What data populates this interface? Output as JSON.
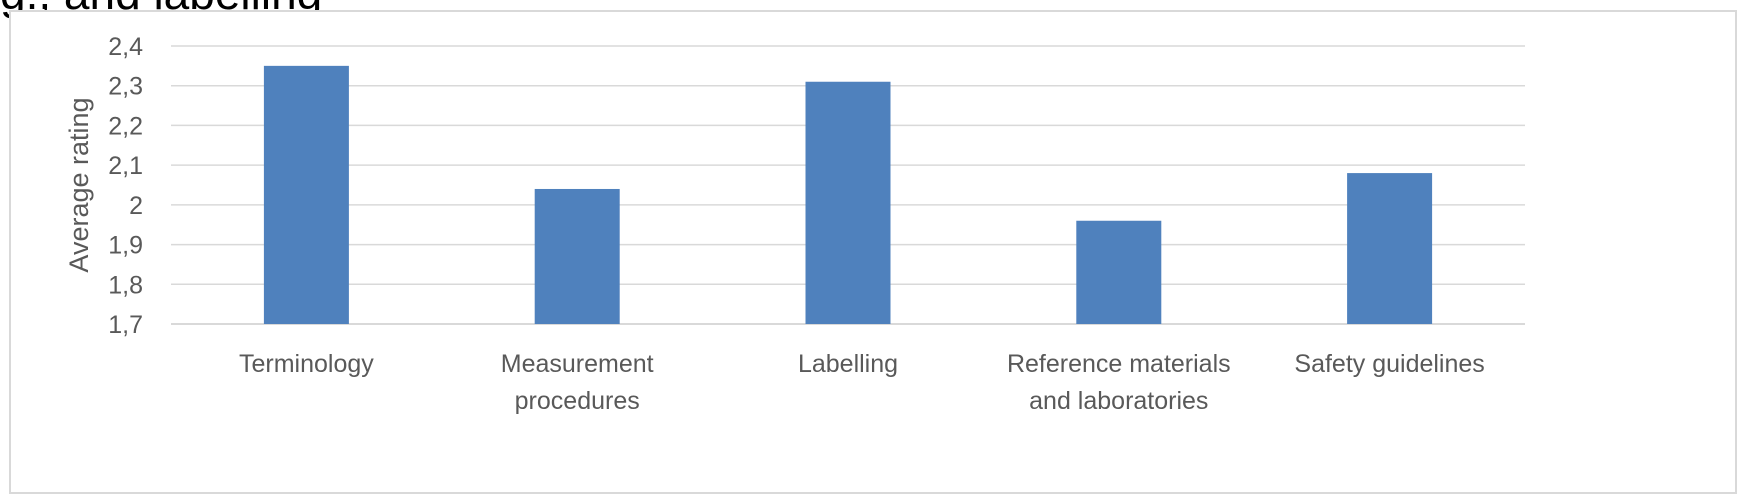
{
  "caption_fragment": "g., and labelling",
  "chart_data": {
    "type": "bar",
    "title": "",
    "xlabel": "",
    "ylabel": "Average rating",
    "ylim": [
      1.7,
      2.4
    ],
    "yticks": [
      "1,7",
      "1,8",
      "1,9",
      "2",
      "2,1",
      "2,2",
      "2,3",
      "2,4"
    ],
    "categories": [
      [
        "Terminology"
      ],
      [
        "Measurement",
        "procedures"
      ],
      [
        "Labelling"
      ],
      [
        "Reference materials",
        "and laboratories"
      ],
      [
        "Safety guidelines"
      ]
    ],
    "values": [
      2.35,
      2.04,
      2.31,
      1.96,
      2.08
    ],
    "bar_color": "#4f81bd",
    "grid_color": "#d9d9d9",
    "grid": true,
    "legend": "none"
  }
}
